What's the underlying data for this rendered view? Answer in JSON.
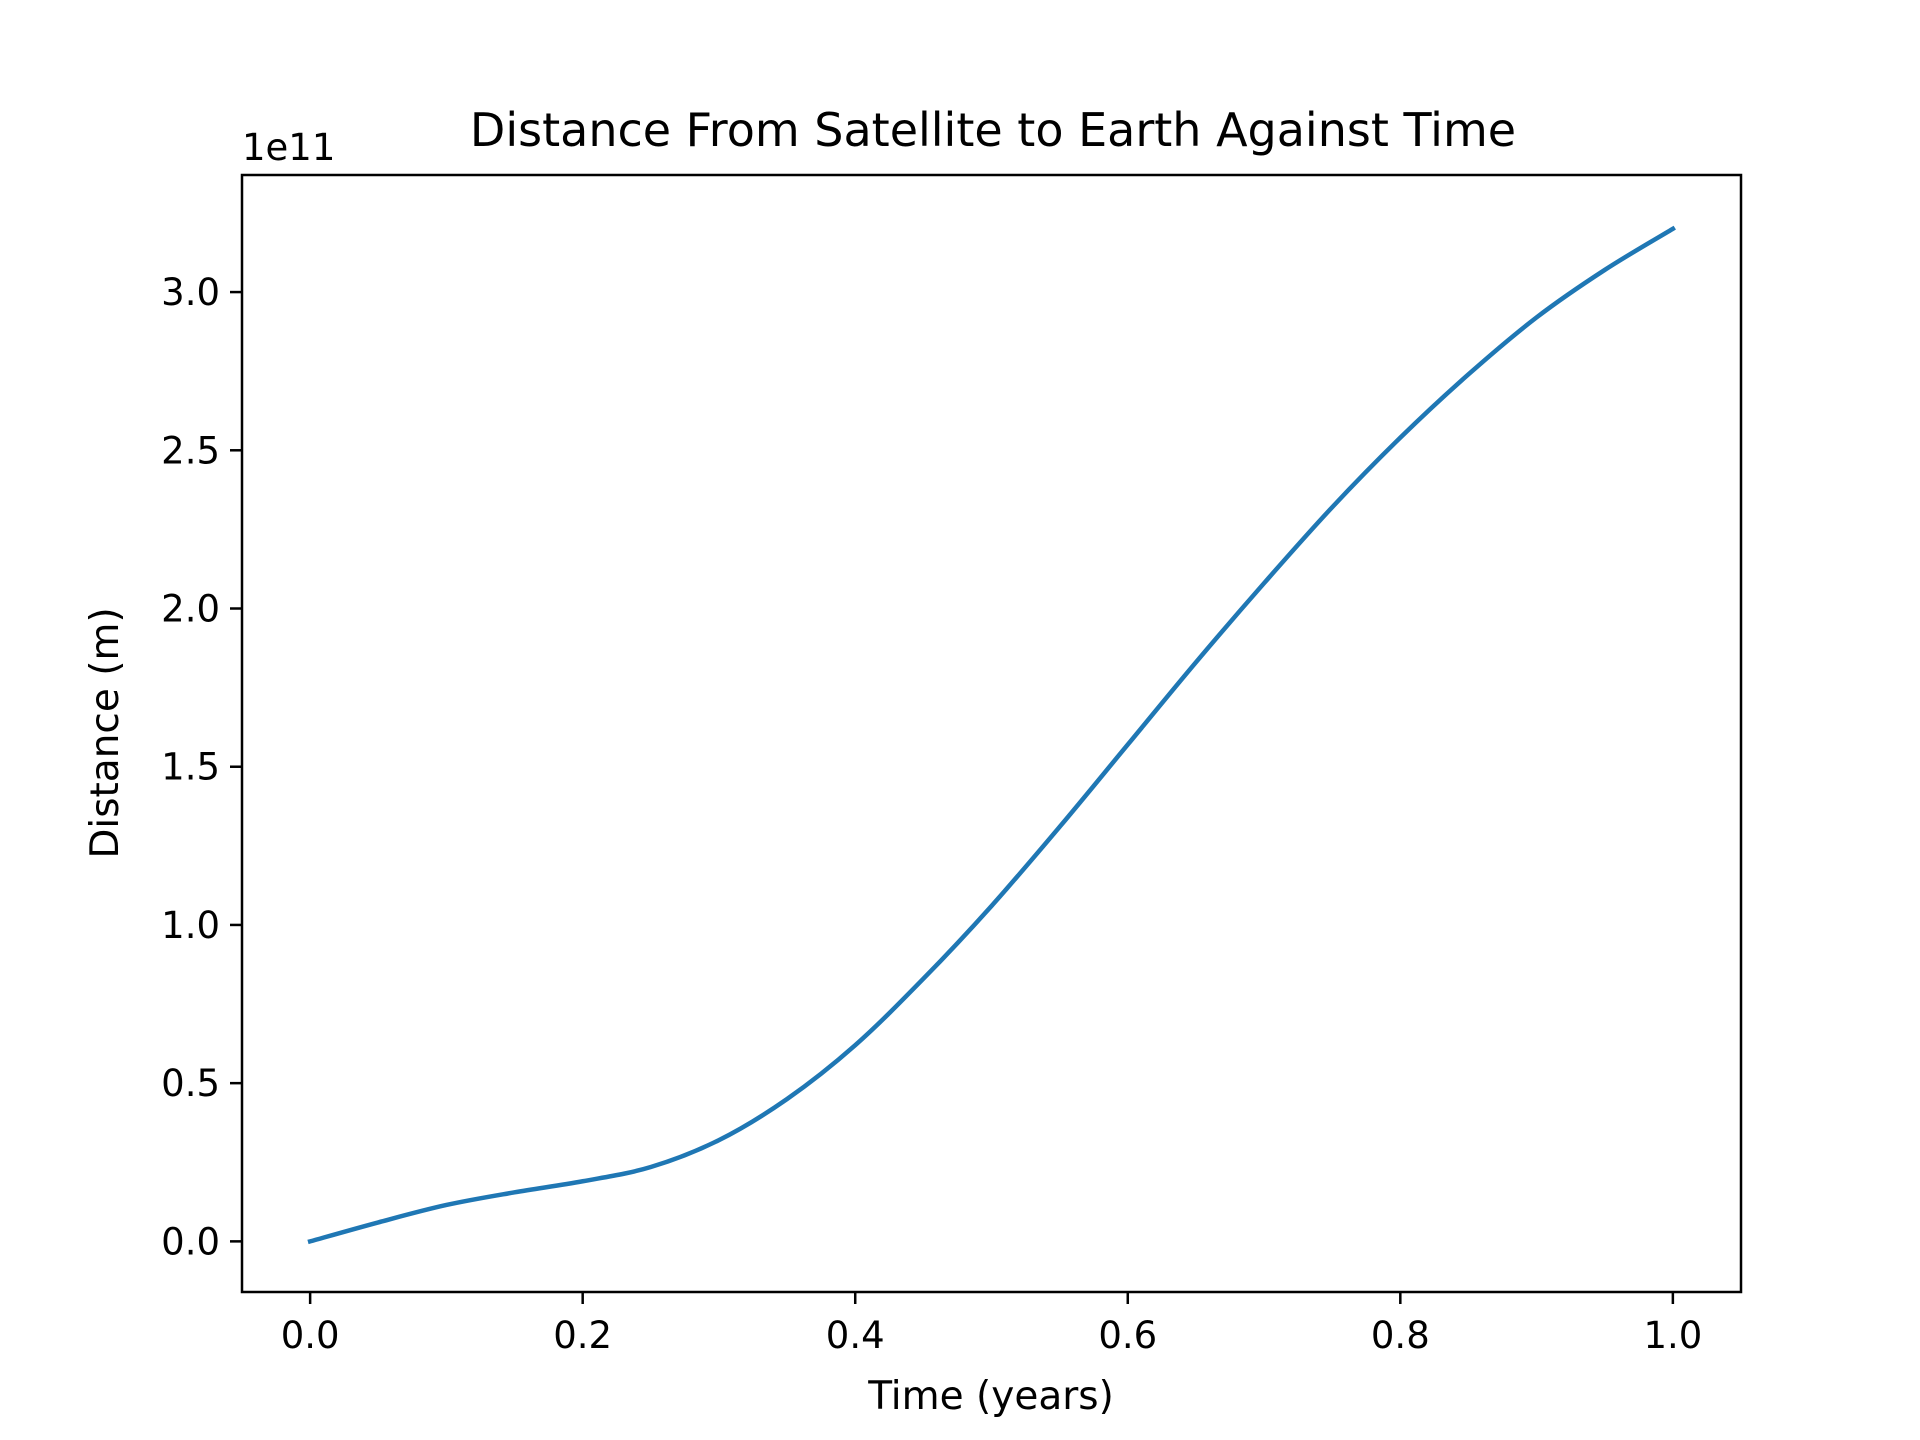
{
  "chart_data": {
    "type": "line",
    "title": "Distance From Satellite to Earth Against Time",
    "xlabel": "Time (years)",
    "ylabel": "Distance (m)",
    "y_offset_label": "1e11",
    "y_multiplier": 100000000000,
    "xlim": [
      -0.05,
      1.05
    ],
    "ylim": [
      -0.16,
      3.37
    ],
    "x_ticks": [
      {
        "value": 0.0,
        "label": "0.0"
      },
      {
        "value": 0.2,
        "label": "0.2"
      },
      {
        "value": 0.4,
        "label": "0.4"
      },
      {
        "value": 0.6,
        "label": "0.6"
      },
      {
        "value": 0.8,
        "label": "0.8"
      },
      {
        "value": 1.0,
        "label": "1.0"
      }
    ],
    "y_ticks": [
      {
        "value": 0.0,
        "label": "0.0"
      },
      {
        "value": 0.5,
        "label": "0.5"
      },
      {
        "value": 1.0,
        "label": "1.0"
      },
      {
        "value": 1.5,
        "label": "1.5"
      },
      {
        "value": 2.0,
        "label": "2.0"
      },
      {
        "value": 2.5,
        "label": "2.5"
      },
      {
        "value": 3.0,
        "label": "3.0"
      }
    ],
    "grid": false,
    "series": [
      {
        "color": "#1f77b4",
        "x": [
          0.0,
          0.05,
          0.1,
          0.15,
          0.2,
          0.25,
          0.3,
          0.35,
          0.4,
          0.45,
          0.5,
          0.55,
          0.6,
          0.65,
          0.7,
          0.75,
          0.8,
          0.85,
          0.9,
          0.95,
          1.0
        ],
        "y": [
          0.0,
          0.06,
          0.115,
          0.155,
          0.19,
          0.235,
          0.32,
          0.45,
          0.62,
          0.83,
          1.06,
          1.31,
          1.57,
          1.83,
          2.08,
          2.32,
          2.54,
          2.74,
          2.92,
          3.07,
          3.2
        ]
      }
    ]
  }
}
